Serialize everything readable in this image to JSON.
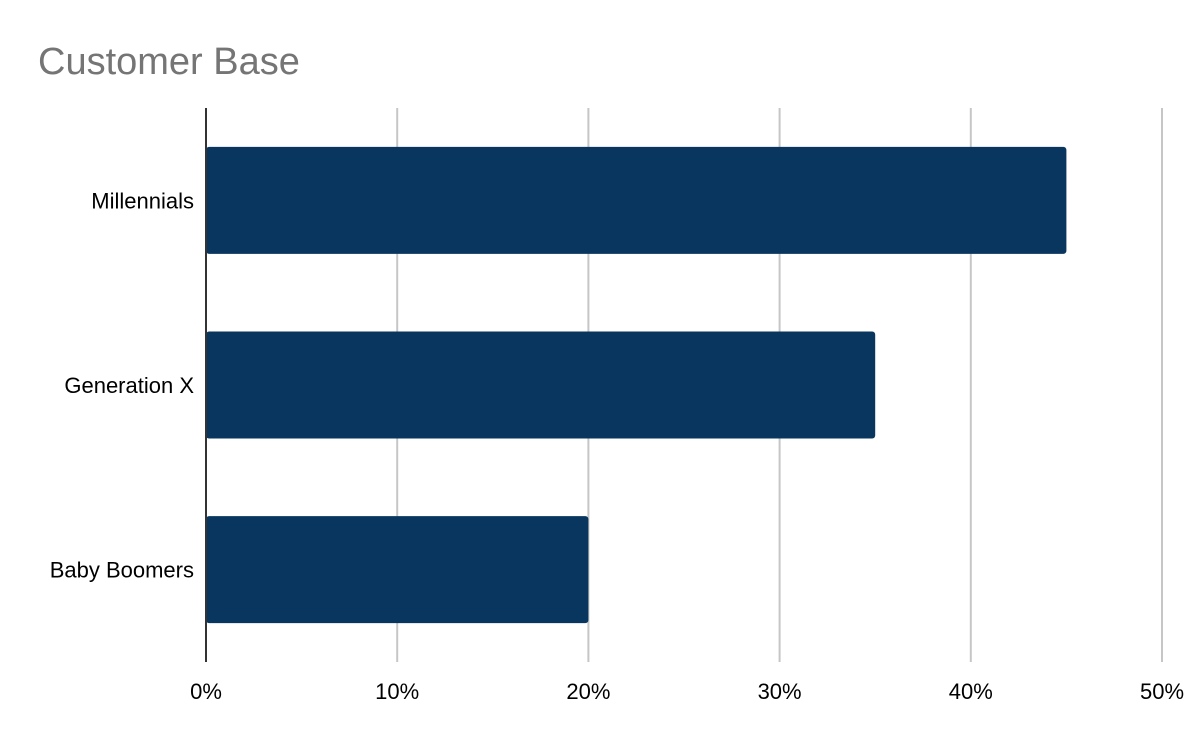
{
  "chart_data": {
    "type": "bar",
    "orientation": "horizontal",
    "title": "Customer Base",
    "categories": [
      "Millennials",
      "Generation X",
      "Baby Boomers"
    ],
    "values": [
      45,
      35,
      20
    ],
    "value_unit": "%",
    "xlim": [
      0,
      50
    ],
    "x_ticks": [
      "0%",
      "10%",
      "20%",
      "30%",
      "40%",
      "50%"
    ],
    "xlabel": "",
    "ylabel": "",
    "grid": "vertical",
    "legend": "none",
    "bar_color": "#08365f",
    "grid_color": "#c6c6c6",
    "axis_color": "#333333"
  }
}
